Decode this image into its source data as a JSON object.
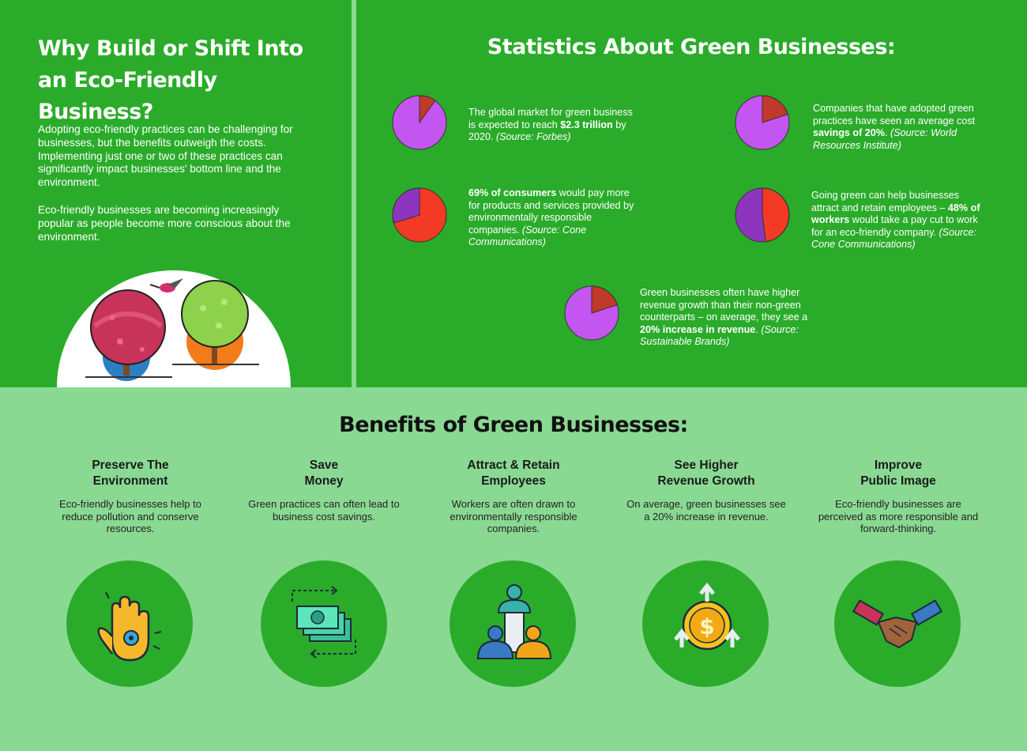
{
  "left": {
    "title": "Why Build or Shift Into an Eco-Friendly Business?",
    "para1": "Adopting eco-friendly practices can be challenging for businesses, but the benefits outweigh the costs. Implementing just one or two of these practices can significantly impact businesses' bottom line and the environment.",
    "para2": "Eco-friendly businesses are becoming increasingly popular as people become more conscious about the environment."
  },
  "stats": {
    "title": "Statistics About Green Businesses:",
    "items": [
      {
        "pre": "The global market for green business is expected to reach ",
        "bold": "$2.3 trillion",
        "post": " by 2020. ",
        "source": "(Source: Forbes)",
        "pie_red_fraction": 0.1
      },
      {
        "pre": "Companies that have adopted green practices have seen an average cost ",
        "bold": "savings of 20%",
        "post": ". ",
        "source": "(Source: World Resources Institute)",
        "pie_red_fraction": 0.2
      },
      {
        "pre": "",
        "bold": "69% of consumers",
        "post": " would pay more for products and services provided by environmentally responsible companies. ",
        "source": "(Source: Cone Communications)",
        "pie_red_fraction": 0.69
      },
      {
        "pre": "Going green can help businesses attract and retain employees – ",
        "bold": "48% of workers",
        "post": " would take a pay cut to work for an eco-friendly company. ",
        "source": "(Source: Cone Communications)",
        "pie_red_fraction": 0.48
      },
      {
        "pre": "Green businesses often have higher revenue growth than their non-green counterparts – on average, they see a ",
        "bold": "20% increase in revenue",
        "post": ". ",
        "source": "(Source: Sustainable Brands)",
        "pie_red_fraction": 0.2
      }
    ]
  },
  "benefits": {
    "title": "Benefits of Green Businesses:",
    "items": [
      {
        "head": "Preserve The\nEnvironment",
        "desc": "Eco-friendly businesses help to reduce pollution and conserve resources.",
        "icon": "hand-nature-icon"
      },
      {
        "head": "Save\nMoney",
        "desc": "Green practices can often lead to business cost savings.",
        "icon": "money-cycle-icon"
      },
      {
        "head": "Attract & Retain\nEmployees",
        "desc": "Workers are often drawn to environmentally responsible companies.",
        "icon": "employees-building-icon"
      },
      {
        "head": "See Higher\nRevenue Growth",
        "desc": "On average, green businesses see a 20% increase in revenue.",
        "icon": "coin-growth-icon"
      },
      {
        "head": "Improve\nPublic Image",
        "desc": "Eco-friendly businesses are perceived as more responsible and forward-thinking.",
        "icon": "handshake-icon"
      }
    ]
  },
  "colors": {
    "dark_green": "#2aac2a",
    "light_green": "#8ad993",
    "pie_purple": "#c355f0",
    "pie_red": "#c0392b",
    "pie_orange_red": "#f23a24",
    "pie_dark_purple": "#8e35c0"
  }
}
